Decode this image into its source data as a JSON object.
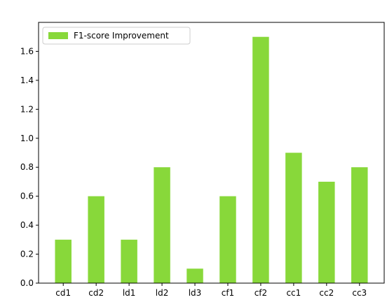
{
  "chart_data": {
    "type": "bar",
    "categories": [
      "cd1",
      "cd2",
      "ld1",
      "ld2",
      "ld3",
      "cf1",
      "cf2",
      "cc1",
      "cc2",
      "cc3"
    ],
    "series": [
      {
        "name": "F1-score Improvement",
        "values": [
          0.3,
          0.6,
          0.3,
          0.8,
          0.1,
          0.6,
          1.7,
          0.9,
          0.7,
          0.8
        ],
        "color": "#88d83a"
      }
    ],
    "ylim": [
      0,
      1.8
    ],
    "yticks": [
      0.0,
      0.2,
      0.4,
      0.6,
      0.8,
      1.0,
      1.2,
      1.4,
      1.6
    ],
    "ytick_labels": [
      "0.0",
      "0.2",
      "0.4",
      "0.6",
      "0.8",
      "1.0",
      "1.2",
      "1.4",
      "1.6"
    ],
    "legend_position": "top-left",
    "grid": false
  }
}
